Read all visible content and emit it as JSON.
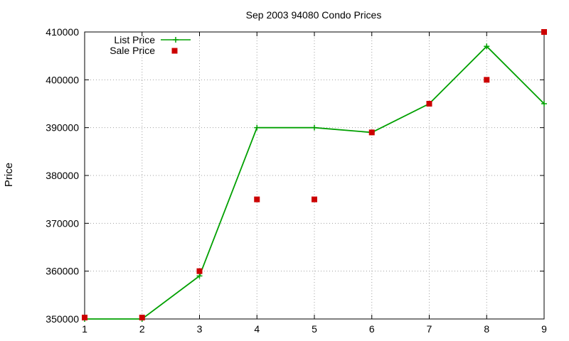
{
  "chart_data": {
    "type": "line",
    "title": "Sep 2003 94080 Condo Prices",
    "xlabel": "",
    "ylabel": "Price",
    "xlim": [
      1,
      9
    ],
    "ylim": [
      350000,
      410000
    ],
    "x_ticks": [
      1,
      2,
      3,
      4,
      5,
      6,
      7,
      8,
      9
    ],
    "y_ticks": [
      350000,
      360000,
      370000,
      380000,
      390000,
      400000,
      410000
    ],
    "grid": true,
    "legend_position": "top-left",
    "series": [
      {
        "name": "List Price",
        "style": "line-with-plus-markers",
        "color": "#00a000",
        "x": [
          1,
          2,
          3,
          4,
          5,
          6,
          7,
          8,
          9
        ],
        "y": [
          350000,
          350000,
          359000,
          390000,
          390000,
          389000,
          395000,
          407000,
          395000
        ]
      },
      {
        "name": "Sale Price",
        "style": "square-markers",
        "color": "#cc0000",
        "x": [
          1,
          2,
          3,
          4,
          5,
          6,
          7,
          8,
          9
        ],
        "y": [
          350300,
          350300,
          360000,
          375000,
          375000,
          389000,
          395000,
          400000,
          410000
        ]
      }
    ]
  }
}
